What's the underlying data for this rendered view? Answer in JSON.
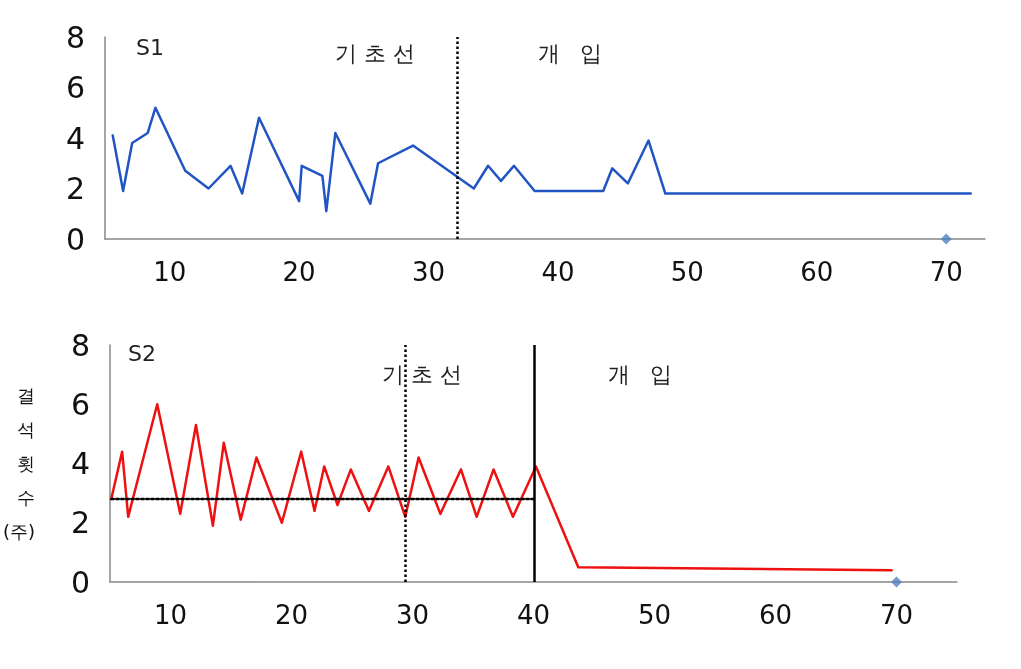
{
  "chart_data": [
    {
      "type": "line",
      "xlim": [
        5,
        73
      ],
      "ylim": [
        0,
        8
      ],
      "xticks": [
        10,
        20,
        30,
        40,
        50,
        60,
        70
      ],
      "yticks": [
        0,
        2,
        4,
        6,
        8
      ],
      "grid": false,
      "marker": "none",
      "line_style": "solid",
      "series": [
        {
          "color": "#2255c4",
          "x": [
            5.6,
            6.4,
            7.1,
            8.3,
            8.9,
            11.2,
            13.0,
            14.7,
            15.6,
            16.9,
            20.0,
            20.2,
            21.8,
            22.1,
            22.8,
            25.5,
            26.1,
            28.8,
            33.5,
            34.6,
            35.6,
            36.6,
            38.2,
            43.5,
            44.2,
            45.4,
            47.0,
            48.3,
            71.9
          ],
          "values": [
            4.1,
            1.9,
            3.8,
            4.2,
            5.2,
            2.7,
            2.0,
            2.9,
            1.8,
            4.8,
            1.5,
            2.9,
            2.5,
            1.1,
            4.2,
            1.4,
            3.0,
            3.7,
            2.0,
            2.9,
            2.3,
            2.9,
            1.9,
            1.9,
            2.8,
            2.2,
            3.9,
            1.8,
            1.8
          ]
        },
        {
          "type": "scatter",
          "marker": "diamond",
          "color": "#4f81bd",
          "x": [
            70
          ],
          "values": [
            0
          ]
        }
      ],
      "ref_lines": [
        {
          "axis": "x",
          "value": 32.2,
          "line_style": "dotted",
          "color": "#000000"
        }
      ],
      "annotations": [
        "S1",
        "기 초 선",
        "개   입"
      ]
    },
    {
      "type": "line",
      "xlim": [
        5,
        75
      ],
      "ylim": [
        0,
        8
      ],
      "xticks": [
        10,
        20,
        30,
        40,
        50,
        60,
        70
      ],
      "yticks": [
        0,
        2,
        4,
        6,
        8
      ],
      "grid": false,
      "marker": "none",
      "line_style": "solid",
      "ylabel": "결석 횟수(주)",
      "series": [
        {
          "color": "#ee1111",
          "x": [
            5.1,
            6.0,
            6.5,
            8.9,
            10.8,
            12.1,
            13.5,
            14.4,
            15.8,
            17.1,
            19.2,
            20.8,
            21.9,
            22.7,
            23.8,
            24.9,
            26.4,
            28.0,
            29.4,
            30.5,
            32.3,
            34.0,
            35.3,
            36.7,
            38.3,
            40.2,
            43.7,
            69.6
          ],
          "values": [
            2.8,
            4.4,
            2.2,
            6.0,
            2.3,
            5.3,
            1.9,
            4.7,
            2.1,
            4.2,
            2.0,
            4.4,
            2.4,
            3.9,
            2.6,
            3.8,
            2.4,
            3.9,
            2.2,
            4.2,
            2.3,
            3.8,
            2.2,
            3.8,
            2.2,
            3.9,
            0.5,
            0.4
          ]
        },
        {
          "color": "#000000",
          "line_style": "dotted",
          "x": [
            5.1,
            40.0
          ],
          "values": [
            2.8,
            2.8
          ]
        },
        {
          "type": "scatter",
          "marker": "diamond",
          "color": "#4f81bd",
          "x": [
            70
          ],
          "values": [
            0
          ]
        }
      ],
      "ref_lines": [
        {
          "axis": "x",
          "value": 29.4,
          "line_style": "dotted",
          "color": "#000000"
        },
        {
          "axis": "x",
          "value": 40.1,
          "line_style": "solid",
          "color": "#000000"
        }
      ],
      "annotations": [
        "S2",
        "기 초 선",
        "개   입"
      ]
    }
  ]
}
